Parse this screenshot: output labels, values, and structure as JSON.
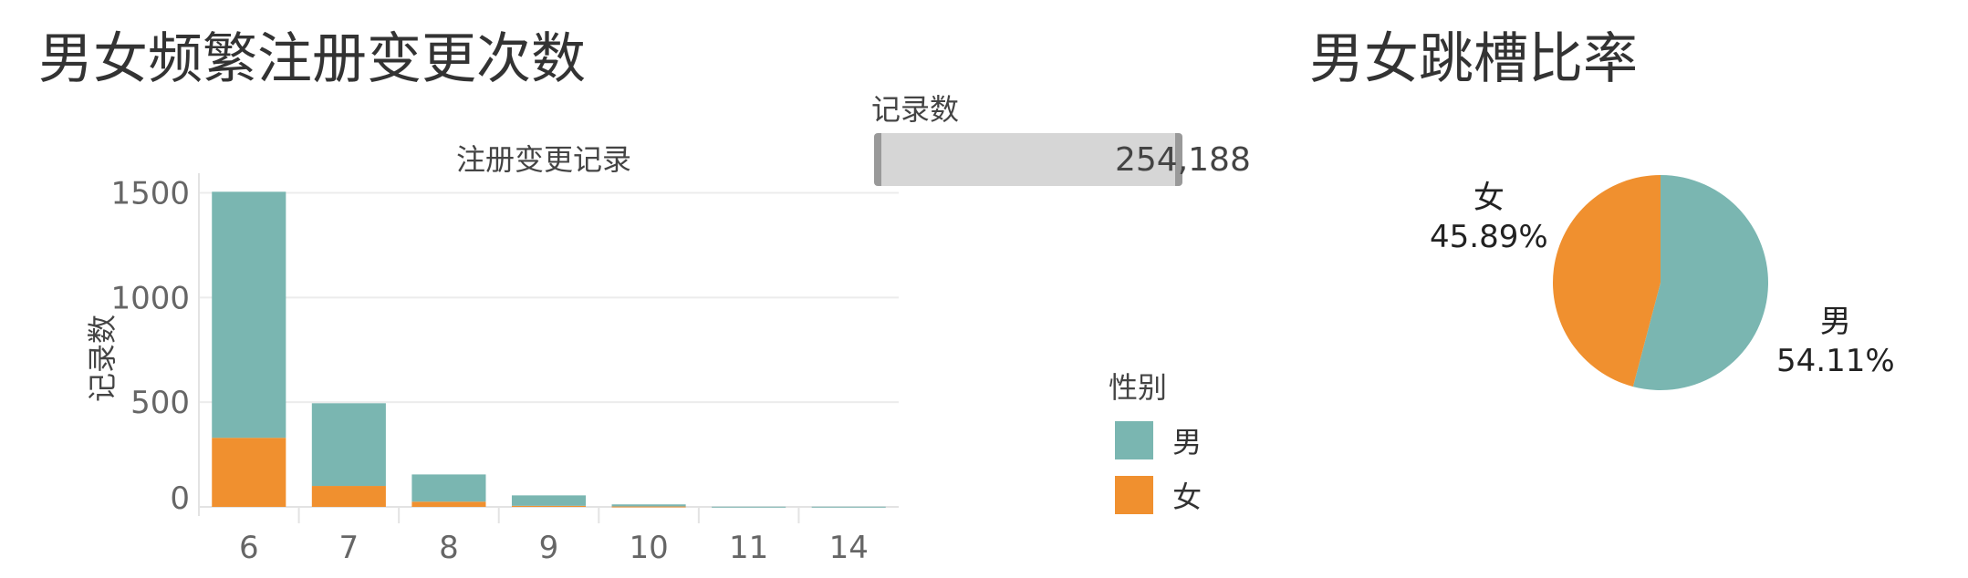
{
  "left_title": "男女频繁注册变更次数",
  "right_title": "男女跳槽比率",
  "kpi": {
    "label": "记录数",
    "value": "254,188"
  },
  "colors": {
    "male": "#7ab6b1",
    "female": "#f0902f"
  },
  "legend": {
    "title": "性别",
    "items": [
      {
        "label": "男",
        "color": "#7ab6b1"
      },
      {
        "label": "女",
        "color": "#f0902f"
      }
    ]
  },
  "chart_data": [
    {
      "type": "bar",
      "stacked": true,
      "title": "注册变更记录",
      "ylabel": "记录数",
      "categories": [
        "6",
        "7",
        "8",
        "9",
        "10",
        "11",
        "14"
      ],
      "series": [
        {
          "name": "女",
          "values": [
            330,
            100,
            25,
            5,
            2,
            0,
            0
          ]
        },
        {
          "name": "男",
          "values": [
            1175,
            395,
            130,
            50,
            10,
            1,
            1
          ]
        }
      ],
      "y_ticks": [
        "0",
        "500",
        "1000",
        "1500"
      ],
      "ylim": [
        0,
        1550
      ],
      "grid": true
    },
    {
      "type": "pie",
      "slices": [
        {
          "name": "男",
          "value": 54.11,
          "label": "54.11%"
        },
        {
          "name": "女",
          "value": 45.89,
          "label": "45.89%"
        }
      ]
    }
  ]
}
